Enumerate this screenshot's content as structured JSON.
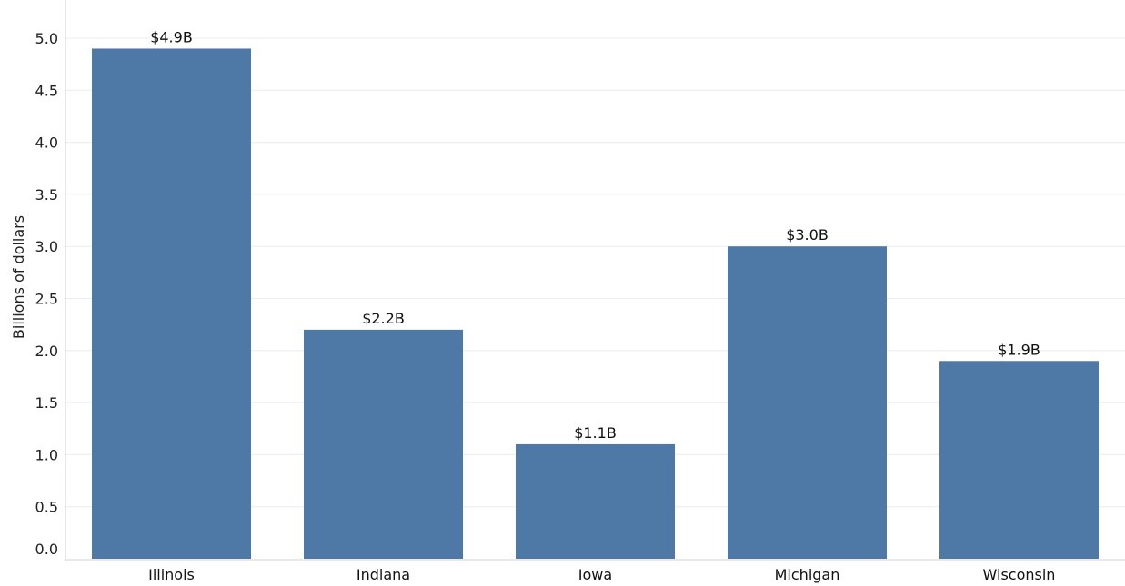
{
  "chart_data": {
    "type": "bar",
    "categories": [
      "Illinois",
      "Indiana",
      "Iowa",
      "Michigan",
      "Wisconsin"
    ],
    "values": [
      4.9,
      2.2,
      1.1,
      3.0,
      1.9
    ],
    "data_labels": [
      "$4.9B",
      "$2.2B",
      "$1.1B",
      "$3.0B",
      "$1.9B"
    ],
    "title": "",
    "xlabel": "",
    "ylabel": "Billions of dollars",
    "ylim": [
      0,
      5.0
    ],
    "yticks": [
      0.0,
      0.5,
      1.0,
      1.5,
      2.0,
      2.5,
      3.0,
      3.5,
      4.0,
      4.5,
      5.0
    ],
    "ytick_labels": [
      "0.0",
      "0.5",
      "1.0",
      "1.5",
      "2.0",
      "2.5",
      "3.0",
      "3.5",
      "4.0",
      "4.5",
      "5.0"
    ],
    "grid": true,
    "legend": "none",
    "bar_color": "#4e79a7"
  }
}
